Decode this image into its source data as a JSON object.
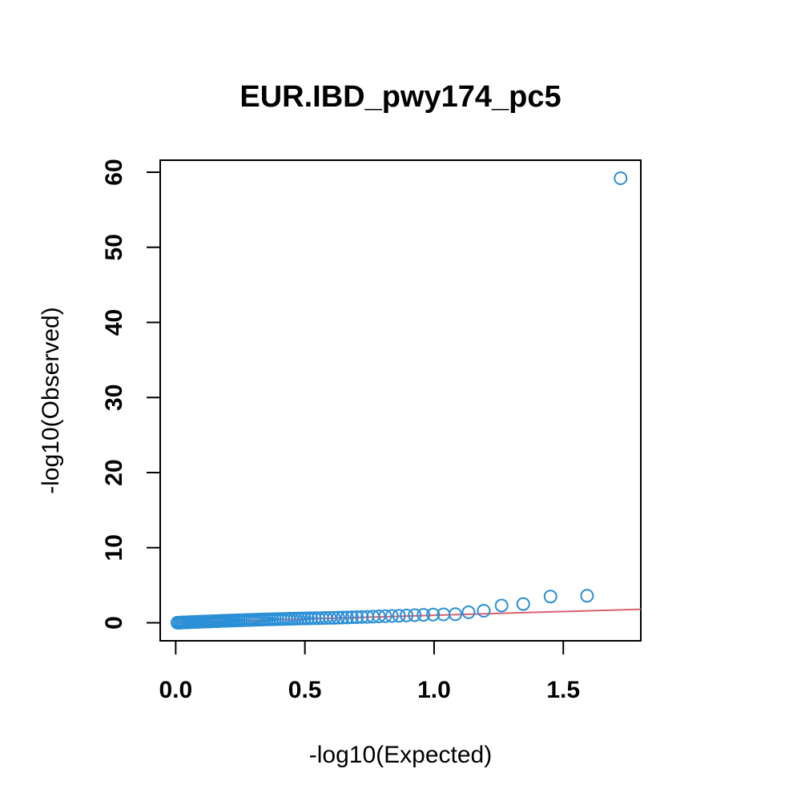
{
  "chart_data": {
    "type": "scatter",
    "title": "EUR.IBD_pwy174_pc5",
    "xlabel": "-log10(Expected)",
    "ylabel": "-log10(Observed)",
    "xlim": [
      -0.06,
      1.8
    ],
    "ylim": [
      -2.4,
      61.6
    ],
    "xticks": [
      0.0,
      0.5,
      1.0,
      1.5
    ],
    "xtick_labels": [
      "0.0",
      "0.5",
      "1.0",
      "1.5"
    ],
    "yticks": [
      0,
      10,
      20,
      30,
      40,
      50,
      60
    ],
    "ytick_labels": [
      "0",
      "10",
      "20",
      "30",
      "40",
      "50",
      "60"
    ],
    "grid": false,
    "point_color": "#2b8fd6",
    "reference_line": {
      "from": [
        0,
        0
      ],
      "to": [
        1.8,
        1.8
      ],
      "color": "#d9606e"
    },
    "series": [
      {
        "x": [
          0.0066,
          0.0133,
          0.0201,
          0.0269,
          0.0337,
          0.0405,
          0.0473,
          0.0542,
          0.0612,
          0.0681,
          0.0752,
          0.0822,
          0.0894,
          0.0965,
          0.1037,
          0.111,
          0.1183,
          0.1257,
          0.1331,
          0.1405,
          0.1481,
          0.1556,
          0.1633,
          0.171,
          0.1788,
          0.1866,
          0.1945,
          0.2025,
          0.2106,
          0.2188,
          0.227,
          0.2353,
          0.2437,
          0.2522,
          0.2608,
          0.2695,
          0.2783,
          0.2872,
          0.2962,
          0.3054,
          0.3146,
          0.324,
          0.3335,
          0.3432,
          0.353,
          0.363,
          0.3731,
          0.3834,
          0.3939,
          0.4046,
          0.4155,
          0.4266,
          0.4379,
          0.4495,
          0.4613,
          0.4734,
          0.4857,
          0.4983,
          0.5113,
          0.5246,
          0.5382,
          0.5522,
          0.5666,
          0.5814,
          0.5967,
          0.6125,
          0.6289,
          0.6459,
          0.6635,
          0.6818,
          0.7009,
          0.7208,
          0.7417,
          0.7636,
          0.7866,
          0.811,
          0.8368,
          0.8642,
          0.8935,
          0.9249,
          0.959,
          0.9961,
          1.0368,
          1.0823,
          1.1335,
          1.1923,
          1.2613,
          1.345,
          1.4505,
          1.592,
          1.7218
        ],
        "y": [
          0.01,
          0.02,
          0.03,
          0.04,
          0.05,
          0.06,
          0.07,
          0.08,
          0.09,
          0.1,
          0.11,
          0.12,
          0.13,
          0.14,
          0.15,
          0.16,
          0.17,
          0.18,
          0.19,
          0.2,
          0.21,
          0.22,
          0.23,
          0.24,
          0.25,
          0.26,
          0.27,
          0.28,
          0.29,
          0.3,
          0.31,
          0.32,
          0.33,
          0.34,
          0.35,
          0.36,
          0.37,
          0.38,
          0.39,
          0.4,
          0.41,
          0.42,
          0.43,
          0.44,
          0.45,
          0.46,
          0.47,
          0.48,
          0.49,
          0.5,
          0.51,
          0.52,
          0.53,
          0.54,
          0.55,
          0.56,
          0.57,
          0.58,
          0.59,
          0.6,
          0.61,
          0.62,
          0.63,
          0.64,
          0.65,
          0.66,
          0.68,
          0.7,
          0.71,
          0.73,
          0.75,
          0.77,
          0.79,
          0.82,
          0.85,
          0.88,
          0.91,
          0.94,
          0.98,
          1.02,
          1.06,
          1.1,
          1.12,
          1.15,
          1.4,
          1.6,
          2.3,
          2.5,
          3.5,
          3.6,
          59.2
        ]
      }
    ]
  }
}
